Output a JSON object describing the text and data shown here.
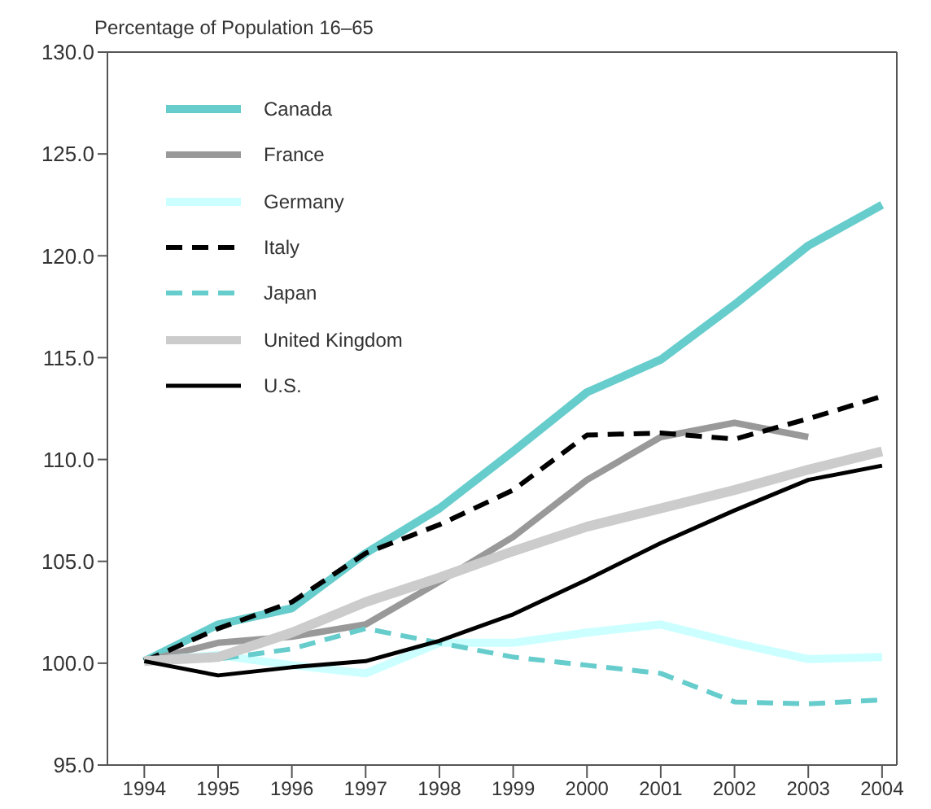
{
  "chart_data": {
    "type": "line",
    "ylabel": "Percentage of Population 16–65",
    "x": [
      1994,
      1995,
      1996,
      1997,
      1998,
      1999,
      2000,
      2001,
      2002,
      2003,
      2004
    ],
    "xlim": [
      1993.5,
      2004.2
    ],
    "xticks": [
      1994,
      1995,
      1996,
      1997,
      1998,
      1999,
      2000,
      2001,
      2002,
      2003,
      2004
    ],
    "ylim": [
      95,
      130
    ],
    "yticks": [
      {
        "value": 95,
        "label": "95.0"
      },
      {
        "value": 100,
        "label": "100.0"
      },
      {
        "value": 105,
        "label": "105.0"
      },
      {
        "value": 110,
        "label": "110.0"
      },
      {
        "value": 115,
        "label": "115.0"
      },
      {
        "value": 120,
        "label": "120.0"
      },
      {
        "value": 125,
        "label": "125.0"
      },
      {
        "value": 130,
        "label": "130.0"
      }
    ],
    "grid": false,
    "legend": "top left",
    "marker": "none",
    "series": [
      {
        "name": "Canada",
        "color": "#66cccc",
        "line_style": "solid",
        "values": [
          100.1,
          101.9,
          102.7,
          105.4,
          107.6,
          110.4,
          113.3,
          114.9,
          117.6,
          120.5,
          122.5
        ]
      },
      {
        "name": "France",
        "color": "#999999",
        "line_style": "solid",
        "values": [
          100.1,
          101.0,
          101.3,
          101.9,
          104.0,
          106.2,
          109.0,
          111.1,
          111.8,
          111.1,
          null
        ]
      },
      {
        "name": "Germany",
        "color": "#ccffff",
        "line_style": "solid",
        "values": [
          100.1,
          100.4,
          99.9,
          99.5,
          101.0,
          101.0,
          101.5,
          101.9,
          101.0,
          100.2,
          100.3
        ]
      },
      {
        "name": "Italy",
        "color": "#000000",
        "line_style": "dashed",
        "values": [
          100.1,
          101.7,
          103.0,
          105.4,
          106.8,
          108.5,
          111.2,
          111.3,
          111.0,
          112.0,
          113.1
        ]
      },
      {
        "name": "Japan",
        "color": "#66cccc",
        "line_style": "dashed",
        "values": [
          100.1,
          100.2,
          100.7,
          101.7,
          101.0,
          100.3,
          99.9,
          99.5,
          98.1,
          98.0,
          98.2
        ]
      },
      {
        "name": "United Kingdom",
        "color": "#cccccc",
        "line_style": "solid",
        "values": [
          100.1,
          100.3,
          101.5,
          103.0,
          104.2,
          105.5,
          106.7,
          107.6,
          108.5,
          109.5,
          110.4
        ]
      },
      {
        "name": "U.S.",
        "color": "#000000",
        "line_style": "solid",
        "values": [
          100.1,
          99.4,
          99.8,
          100.1,
          101.1,
          102.4,
          104.1,
          105.9,
          107.5,
          109.0,
          109.7
        ]
      }
    ]
  }
}
